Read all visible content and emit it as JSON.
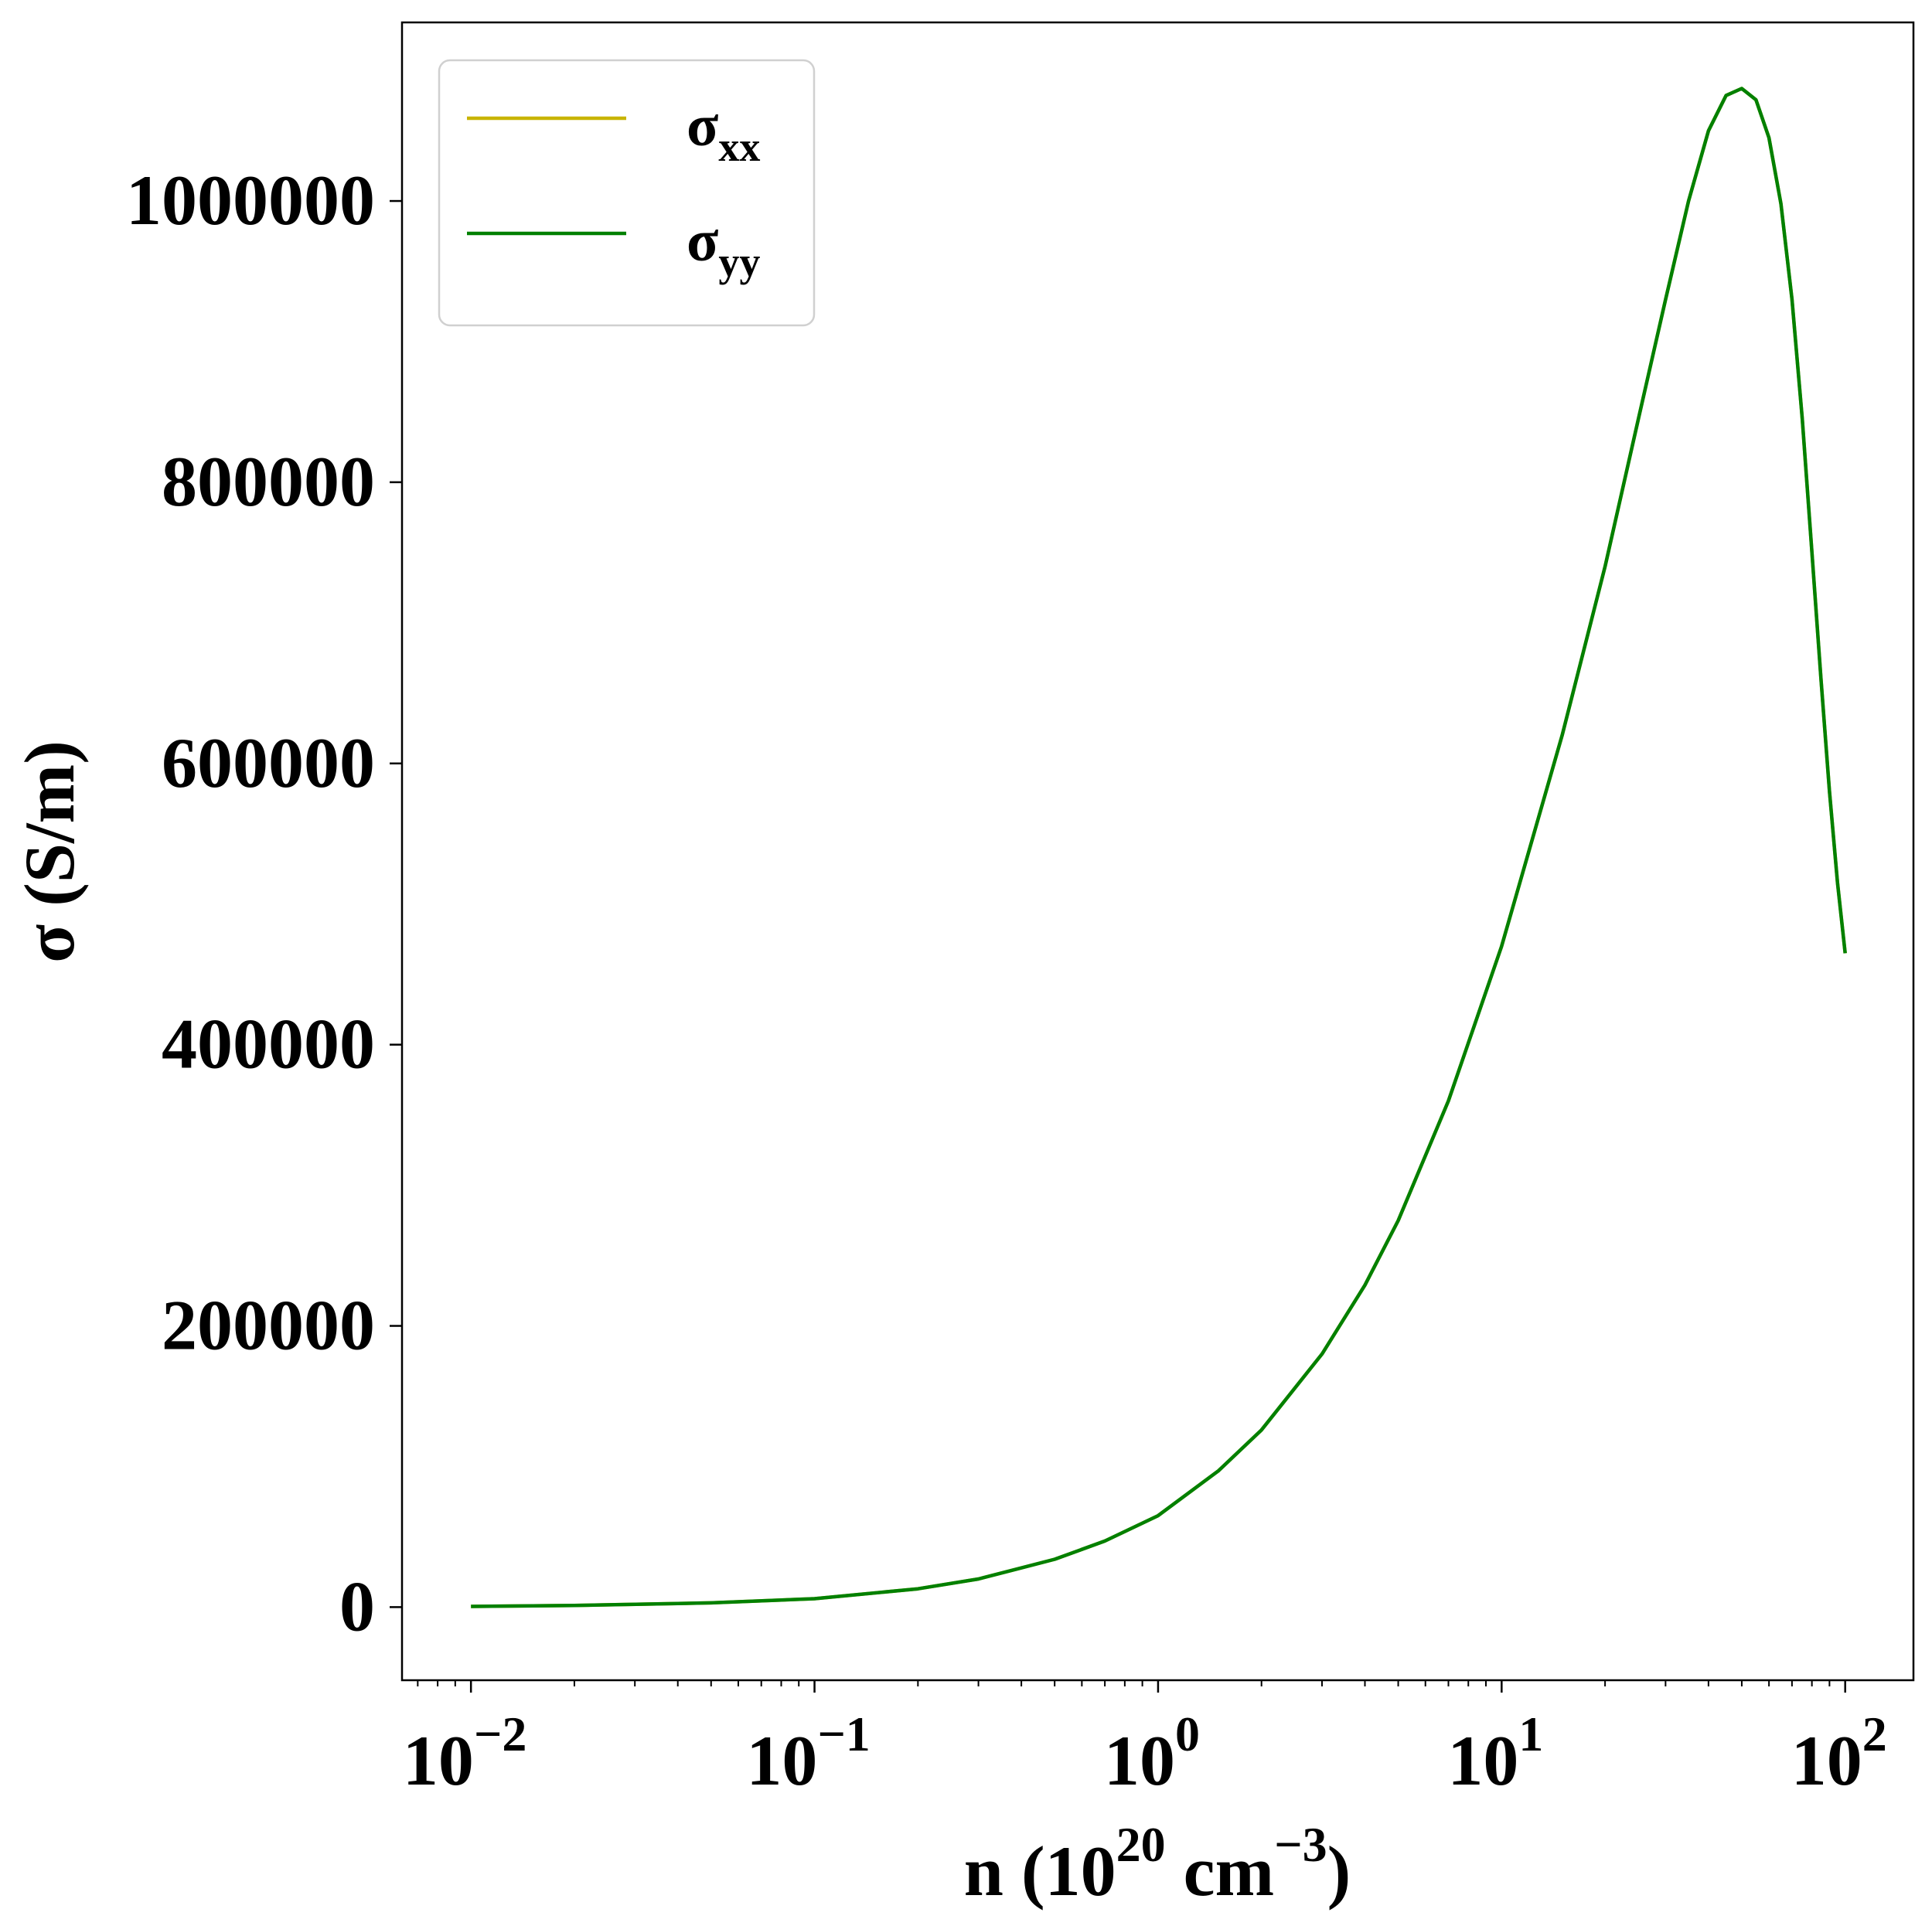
{
  "chart_data": {
    "type": "line",
    "xscale": "log",
    "xlabel": {
      "base": "n (10",
      "sup1": "20",
      "mid": " cm",
      "sup2": "−3",
      "end": ")"
    },
    "ylabel": "σ (S/m)",
    "xlim": [
      0.0063,
      158
    ],
    "ylim": [
      -52000,
      1127000
    ],
    "grid": false,
    "legend_position": "upper-left",
    "x_ticks": [
      {
        "value": 0.01,
        "base": "10",
        "exp": "−2"
      },
      {
        "value": 0.1,
        "base": "10",
        "exp": "−1"
      },
      {
        "value": 1,
        "base": "10",
        "exp": "0"
      },
      {
        "value": 10,
        "base": "10",
        "exp": "1"
      },
      {
        "value": 100,
        "base": "10",
        "exp": "2"
      }
    ],
    "y_ticks": [
      {
        "value": 0,
        "label": "0"
      },
      {
        "value": 200000,
        "label": "200000"
      },
      {
        "value": 400000,
        "label": "400000"
      },
      {
        "value": 600000,
        "label": "600000"
      },
      {
        "value": 800000,
        "label": "800000"
      },
      {
        "value": 1000000,
        "label": "1000000"
      }
    ],
    "series": [
      {
        "name": "σ",
        "sub": "xx",
        "color": "#c8b400",
        "x": [
          0.01,
          0.02,
          0.05,
          0.1,
          0.2,
          0.3,
          0.5,
          0.7,
          1.0,
          1.5,
          2.0,
          3.0,
          4.0,
          5.0,
          7.0,
          10,
          15,
          20,
          25,
          30,
          35,
          40,
          45,
          50,
          55,
          60,
          65,
          70,
          75,
          80,
          85,
          90,
          95,
          100
        ],
        "y": [
          500,
          1200,
          3000,
          6000,
          13000,
          20000,
          34000,
          47000,
          65000,
          97000,
          126000,
          180000,
          229000,
          275000,
          360000,
          470000,
          620000,
          740000,
          845000,
          930000,
          1000000,
          1050000,
          1075000,
          1080000,
          1072000,
          1045000,
          998000,
          930000,
          845000,
          750000,
          660000,
          580000,
          515000,
          465000
        ]
      },
      {
        "name": "σ",
        "sub": "yy",
        "color": "#008000",
        "x": [
          0.01,
          0.02,
          0.05,
          0.1,
          0.2,
          0.3,
          0.5,
          0.7,
          1.0,
          1.5,
          2.0,
          3.0,
          4.0,
          5.0,
          7.0,
          10,
          15,
          20,
          25,
          30,
          35,
          40,
          45,
          50,
          55,
          60,
          65,
          70,
          75,
          80,
          85,
          90,
          95,
          100
        ],
        "y": [
          500,
          1200,
          3000,
          6000,
          13000,
          20000,
          34000,
          47000,
          65000,
          97000,
          126000,
          180000,
          229000,
          275000,
          360000,
          470000,
          620000,
          740000,
          845000,
          930000,
          1000000,
          1050000,
          1075000,
          1080000,
          1072000,
          1045000,
          998000,
          930000,
          845000,
          750000,
          660000,
          580000,
          515000,
          465000
        ]
      }
    ]
  }
}
